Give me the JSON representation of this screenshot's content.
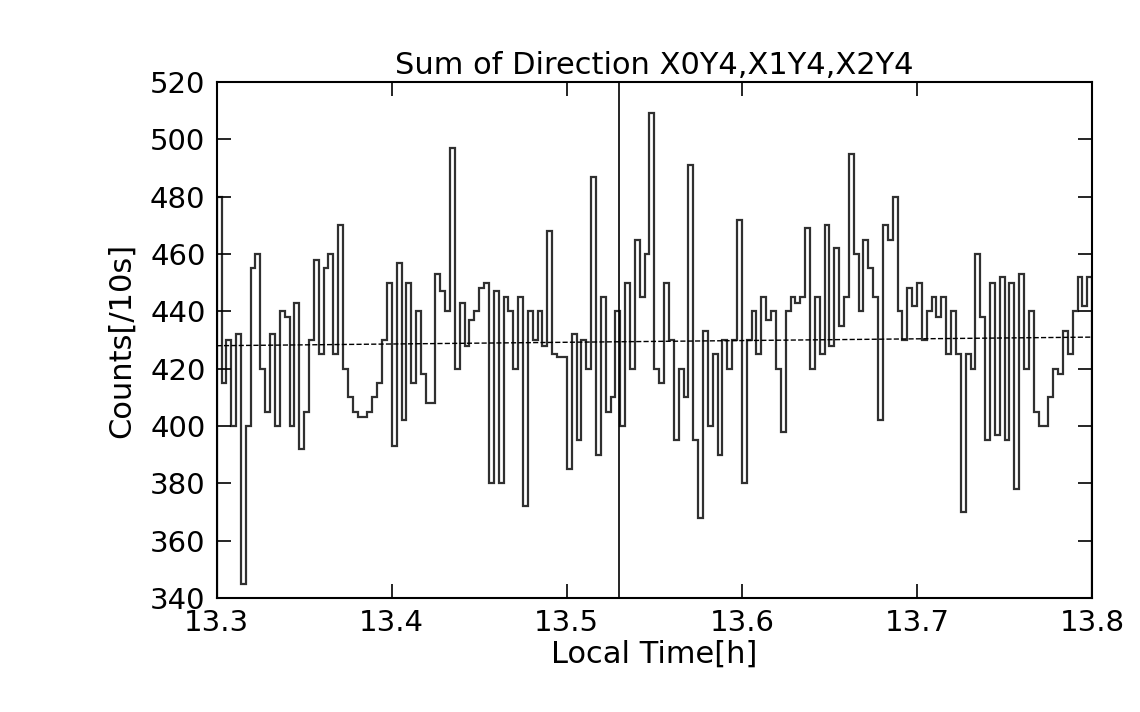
{
  "chart_data": {
    "type": "histogram",
    "title": "Sum of Direction X0Y4,X1Y4,X2Y4",
    "x_label": "Local Time[h]",
    "y_label": "Counts[/10s]",
    "color": "#303030",
    "bins": [
      13.3,
      13.3028,
      13.3056,
      13.3083,
      13.3111,
      13.3139,
      13.3167,
      13.3194,
      13.3222,
      13.325,
      13.3278,
      13.3306,
      13.3333,
      13.3361,
      13.3389,
      13.3417,
      13.3444,
      13.3472,
      13.35,
      13.3528,
      13.3556,
      13.3583,
      13.3611,
      13.3639,
      13.3667,
      13.3694,
      13.3722,
      13.375,
      13.3778,
      13.3806,
      13.3833,
      13.3861,
      13.3889,
      13.3917,
      13.3944,
      13.3972,
      13.4,
      13.4028,
      13.4056,
      13.4083,
      13.4111,
      13.4139,
      13.4167,
      13.4194,
      13.4222,
      13.425,
      13.4278,
      13.4306,
      13.4333,
      13.4361,
      13.4389,
      13.4417,
      13.4444,
      13.4472,
      13.45,
      13.4528,
      13.4556,
      13.4583,
      13.4611,
      13.4639,
      13.4667,
      13.4694,
      13.4722,
      13.475,
      13.4778,
      13.4806,
      13.4833,
      13.4861,
      13.4889,
      13.4917,
      13.4944,
      13.4972,
      13.5,
      13.5028,
      13.5056,
      13.5083,
      13.5111,
      13.5139,
      13.5167,
      13.5194,
      13.5222,
      13.525,
      13.5278,
      13.5306,
      13.5333,
      13.5361,
      13.5389,
      13.5417,
      13.5444,
      13.5472,
      13.55,
      13.5528,
      13.5556,
      13.5583,
      13.5611,
      13.5639,
      13.5667,
      13.5694,
      13.5722,
      13.575,
      13.5778,
      13.5806,
      13.5833,
      13.5861,
      13.5889,
      13.5917,
      13.5944,
      13.5972,
      13.6,
      13.6028,
      13.6056,
      13.6083,
      13.6111,
      13.6139,
      13.6167,
      13.6194,
      13.6222,
      13.625,
      13.6278,
      13.6306,
      13.6333,
      13.6361,
      13.6389,
      13.6417,
      13.6444,
      13.6472,
      13.65,
      13.6528,
      13.6556,
      13.6583,
      13.6611,
      13.6639,
      13.6667,
      13.6694,
      13.6722,
      13.675,
      13.6778,
      13.6806,
      13.6833,
      13.6861,
      13.6889,
      13.6917,
      13.6944,
      13.6972,
      13.7,
      13.7028,
      13.7056,
      13.7083,
      13.7111,
      13.7139,
      13.7167,
      13.7194,
      13.7222,
      13.725,
      13.7278,
      13.7306,
      13.7333,
      13.7361,
      13.7389,
      13.7417,
      13.7444,
      13.7472,
      13.75,
      13.7528,
      13.7556,
      13.7583,
      13.7611,
      13.7639,
      13.7667,
      13.7694,
      13.7722,
      13.775,
      13.7778,
      13.7806,
      13.7833,
      13.7861,
      13.7889,
      13.7917,
      13.7944,
      13.7972,
      13.8
    ],
    "values": [
      480,
      415,
      430,
      400,
      432,
      345,
      400,
      455,
      460,
      420,
      405,
      432,
      400,
      440,
      438,
      400,
      443,
      392,
      405,
      430,
      458,
      425,
      455,
      460,
      425,
      470,
      420,
      410,
      405,
      403,
      403,
      405,
      410,
      415,
      430,
      450,
      393,
      457,
      402,
      450,
      415,
      440,
      418,
      408,
      408,
      453,
      447,
      440,
      497,
      420,
      443,
      428,
      437,
      440,
      448,
      450,
      380,
      447,
      380,
      445,
      440,
      420,
      445,
      372,
      440,
      430,
      440,
      428,
      468,
      425,
      424,
      424,
      385,
      432,
      395,
      430,
      420,
      487,
      390,
      445,
      405,
      410,
      440,
      400,
      450,
      420,
      465,
      445,
      460,
      509,
      420,
      415,
      450,
      430,
      395,
      420,
      410,
      491,
      395,
      368,
      433,
      400,
      425,
      390,
      430,
      420,
      430,
      472,
      380,
      430,
      440,
      425,
      445,
      437,
      440,
      420,
      398,
      440,
      445,
      443,
      445,
      469,
      420,
      445,
      425,
      470,
      428,
      462,
      435,
      445,
      495,
      460,
      440,
      465,
      455,
      445,
      402,
      470,
      465,
      480,
      440,
      430,
      448,
      442,
      450,
      430,
      440,
      445,
      438,
      445,
      425,
      440,
      425,
      370,
      425,
      420,
      460,
      438,
      395,
      450,
      397,
      452,
      395,
      450,
      378,
      453,
      420,
      440,
      405,
      400,
      400,
      410,
      420,
      418,
      433,
      425,
      440,
      452,
      442,
      452
    ],
    "baseline": {
      "x": [
        13.3,
        13.8
      ],
      "values": [
        428,
        431
      ],
      "line_style": "dashed"
    },
    "vline": 13.53,
    "xlim": [
      13.3,
      13.8
    ],
    "xticks": [
      13.3,
      13.4,
      13.5,
      13.6,
      13.7,
      13.8
    ],
    "ylim": [
      340,
      520
    ],
    "yticks": [
      340,
      360,
      380,
      400,
      420,
      440,
      460,
      480,
      500,
      520
    ],
    "grid": false
  }
}
